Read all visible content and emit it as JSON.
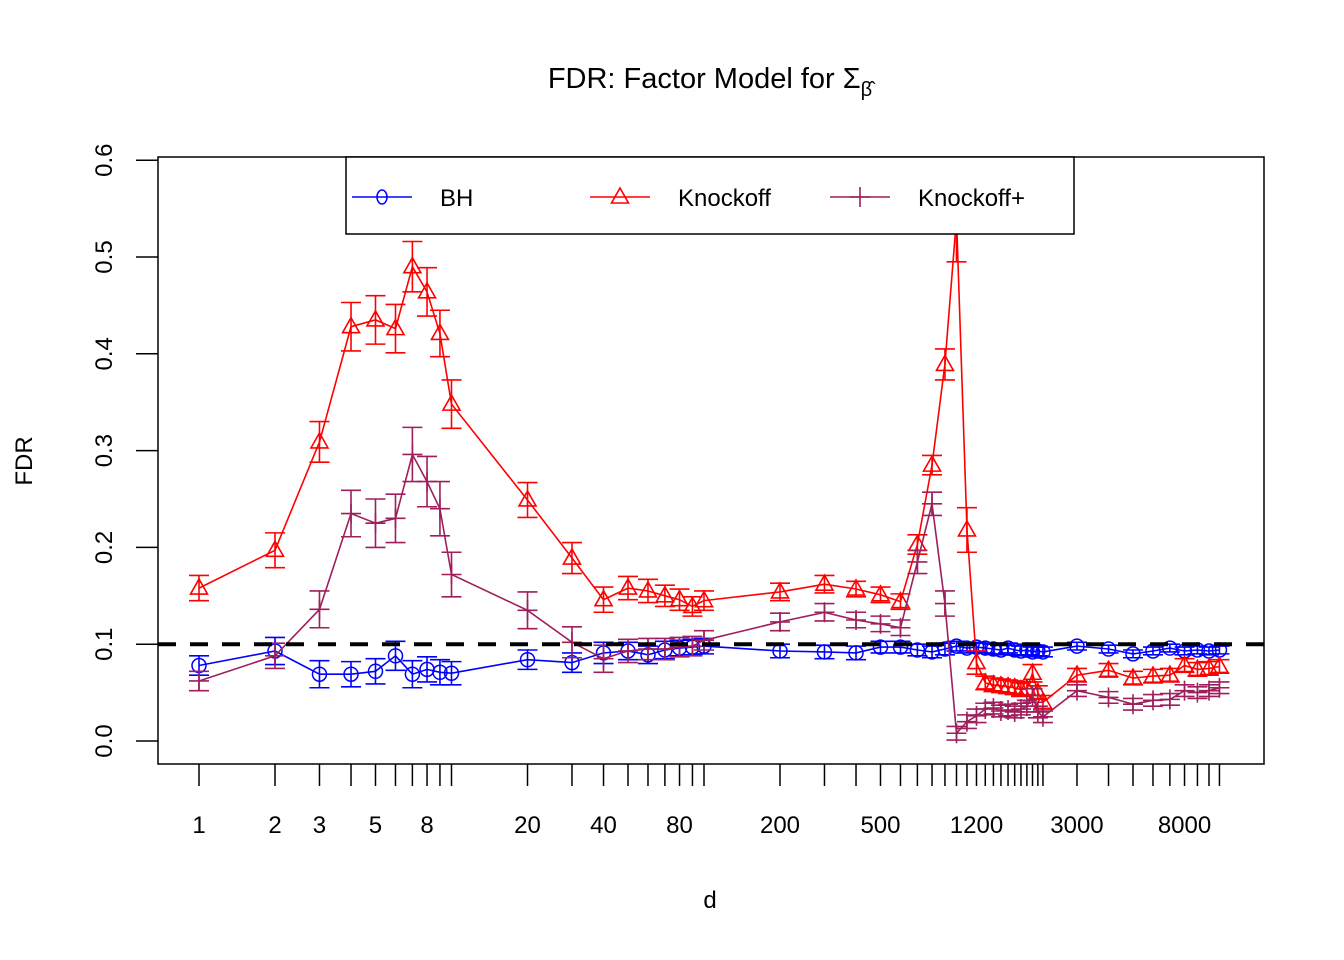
{
  "chart_data": {
    "type": "line",
    "title": "FDR: Factor Model for Σ",
    "title_subscript": "β̂",
    "xlabel": "d",
    "ylabel": "FDR",
    "x_scale": "log",
    "xlim": [
      0.8,
      13500
    ],
    "ylim": [
      -0.022,
      0.6
    ],
    "x_tick_labels": [
      "1",
      "2",
      "3",
      "5",
      "8",
      "20",
      "40",
      "80",
      "200",
      "500",
      "1200",
      "3000",
      "8000"
    ],
    "x_tick_label_values": [
      1,
      2,
      3,
      5,
      8,
      20,
      40,
      80,
      200,
      500,
      1200,
      3000,
      8000
    ],
    "x_tick_marks": [
      1,
      2,
      3,
      4,
      5,
      6,
      7,
      8,
      9,
      10,
      20,
      30,
      40,
      50,
      60,
      70,
      80,
      90,
      100,
      200,
      300,
      400,
      500,
      600,
      700,
      800,
      900,
      1000,
      1100,
      1200,
      1300,
      1400,
      1500,
      1600,
      1700,
      1800,
      1900,
      2000,
      2100,
      2200,
      3000,
      4000,
      5000,
      6000,
      7000,
      8000,
      9000,
      10000,
      11000
    ],
    "y_ticks": [
      0.0,
      0.1,
      0.2,
      0.3,
      0.4,
      0.5,
      0.6
    ],
    "y_tick_labels": [
      "0.0",
      "0.1",
      "0.2",
      "0.3",
      "0.4",
      "0.5",
      "0.6"
    ],
    "reference_line": {
      "y": 0.1,
      "style": "dashed",
      "color": "#000000"
    },
    "legend": {
      "position": "top-center",
      "entries": [
        "BH",
        "Knockoff",
        "Knockoff+"
      ]
    },
    "x": [
      1,
      2,
      3,
      4,
      5,
      6,
      7,
      8,
      9,
      10,
      20,
      30,
      40,
      50,
      60,
      70,
      80,
      90,
      100,
      200,
      300,
      400,
      500,
      600,
      700,
      800,
      900,
      1000,
      1100,
      1200,
      1300,
      1400,
      1500,
      1600,
      1700,
      1800,
      1900,
      2000,
      2100,
      2200,
      3000,
      4000,
      5000,
      6000,
      7000,
      8000,
      9000,
      10000,
      11000
    ],
    "series": [
      {
        "name": "BH",
        "color": "#0000ff",
        "marker": "circle",
        "values": [
          0.078,
          0.093,
          0.069,
          0.069,
          0.072,
          0.088,
          0.069,
          0.074,
          0.071,
          0.07,
          0.084,
          0.081,
          0.091,
          0.093,
          0.089,
          0.094,
          0.096,
          0.097,
          0.098,
          0.093,
          0.092,
          0.091,
          0.097,
          0.097,
          0.094,
          0.092,
          0.095,
          0.098,
          0.096,
          0.097,
          0.096,
          0.095,
          0.094,
          0.096,
          0.094,
          0.093,
          0.094,
          0.092,
          0.093,
          0.092,
          0.098,
          0.095,
          0.09,
          0.093,
          0.096,
          0.093,
          0.094,
          0.093,
          0.094
        ],
        "errors": [
          0.01,
          0.014,
          0.014,
          0.013,
          0.013,
          0.015,
          0.014,
          0.013,
          0.013,
          0.012,
          0.01,
          0.01,
          0.011,
          0.009,
          0.009,
          0.009,
          0.008,
          0.008,
          0.008,
          0.007,
          0.007,
          0.007,
          0.006,
          0.006,
          0.006,
          0.006,
          0.006,
          0.005,
          0.005,
          0.005,
          0.005,
          0.005,
          0.005,
          0.005,
          0.005,
          0.005,
          0.005,
          0.005,
          0.005,
          0.005,
          0.004,
          0.004,
          0.004,
          0.004,
          0.004,
          0.004,
          0.004,
          0.004,
          0.004
        ]
      },
      {
        "name": "Knockoff",
        "color": "#ff0000",
        "marker": "triangle",
        "values": [
          0.158,
          0.197,
          0.309,
          0.428,
          0.435,
          0.426,
          0.49,
          0.464,
          0.421,
          0.348,
          0.249,
          0.189,
          0.146,
          0.158,
          0.155,
          0.15,
          0.146,
          0.139,
          0.145,
          0.154,
          0.162,
          0.157,
          0.151,
          0.144,
          0.203,
          0.285,
          0.389,
          0.54,
          0.218,
          0.081,
          0.06,
          0.058,
          0.057,
          0.056,
          0.055,
          0.053,
          0.054,
          0.07,
          0.05,
          0.04,
          0.068,
          0.073,
          0.065,
          0.067,
          0.068,
          0.078,
          0.074,
          0.075,
          0.077
        ],
        "errors": [
          0.013,
          0.018,
          0.021,
          0.025,
          0.025,
          0.025,
          0.026,
          0.025,
          0.024,
          0.025,
          0.018,
          0.016,
          0.013,
          0.012,
          0.012,
          0.011,
          0.011,
          0.01,
          0.01,
          0.009,
          0.009,
          0.008,
          0.008,
          0.008,
          0.01,
          0.01,
          0.016,
          0.045,
          0.023,
          0.012,
          0.007,
          0.007,
          0.007,
          0.007,
          0.007,
          0.007,
          0.007,
          0.009,
          0.007,
          0.007,
          0.007,
          0.007,
          0.007,
          0.007,
          0.007,
          0.007,
          0.007,
          0.007,
          0.007
        ]
      },
      {
        "name": "Knockoff+",
        "color": "#9e1f5c",
        "marker": "plus",
        "values": [
          0.062,
          0.088,
          0.136,
          0.235,
          0.225,
          0.23,
          0.296,
          0.268,
          0.24,
          0.172,
          0.135,
          0.102,
          0.085,
          0.093,
          0.095,
          0.095,
          0.097,
          0.098,
          0.104,
          0.123,
          0.133,
          0.125,
          0.121,
          0.117,
          0.185,
          0.245,
          0.142,
          0.008,
          0.02,
          0.026,
          0.033,
          0.034,
          0.031,
          0.032,
          0.03,
          0.033,
          0.036,
          0.047,
          0.03,
          0.025,
          0.052,
          0.045,
          0.038,
          0.042,
          0.043,
          0.052,
          0.05,
          0.052,
          0.055
        ],
        "errors": [
          0.01,
          0.013,
          0.019,
          0.024,
          0.025,
          0.025,
          0.028,
          0.026,
          0.028,
          0.023,
          0.019,
          0.016,
          0.014,
          0.012,
          0.011,
          0.011,
          0.01,
          0.01,
          0.01,
          0.009,
          0.009,
          0.008,
          0.008,
          0.008,
          0.012,
          0.012,
          0.013,
          0.007,
          0.007,
          0.007,
          0.006,
          0.006,
          0.006,
          0.006,
          0.006,
          0.006,
          0.006,
          0.007,
          0.006,
          0.006,
          0.006,
          0.006,
          0.006,
          0.006,
          0.006,
          0.006,
          0.006,
          0.006,
          0.006
        ]
      }
    ]
  }
}
